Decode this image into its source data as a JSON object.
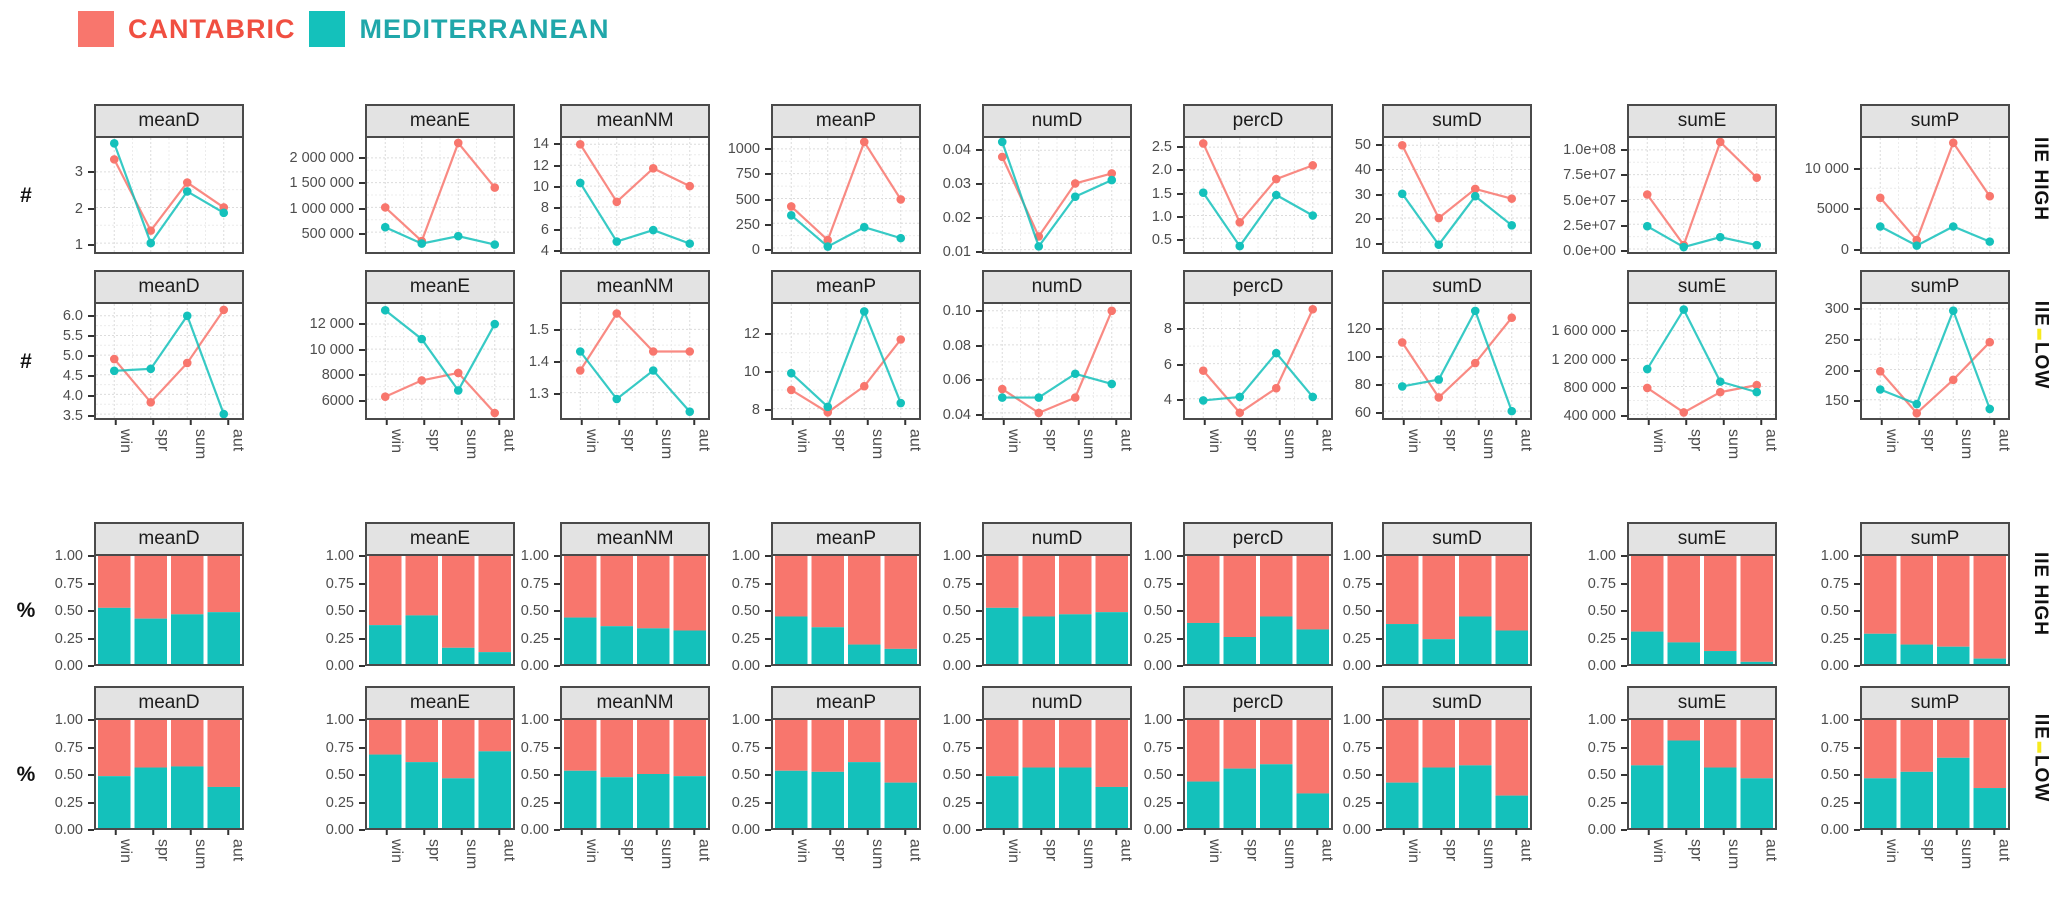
{
  "legend": {
    "items": [
      {
        "label": "CANTABRIC",
        "swatch_color": "#f8766d",
        "text_color": "#f04f41"
      },
      {
        "label": "MEDITERRANEAN",
        "swatch_color": "#14c1bb",
        "text_color": "#20a7aa"
      }
    ]
  },
  "colors": {
    "cantabric": "#f8766d",
    "mediterranean": "#14c1bb",
    "grid_major": "#dcdcdc",
    "grid_minor": "#ececec",
    "axis_text": "#4d4d4d",
    "strip_bg": "#e3e3e3",
    "panel_border": "#4a4a4a",
    "highlight_yellow": "#f7ea1f"
  },
  "chart_data": {
    "type": "facet_grid",
    "x_categories": [
      "win",
      "spr",
      "sum",
      "aut"
    ],
    "facet_columns": [
      "meanD",
      "meanE",
      "meanNM",
      "meanP",
      "numD",
      "percD",
      "sumD",
      "sumE",
      "sumP"
    ],
    "series_names": [
      "CANTABRIC",
      "MEDITERRANEAN"
    ],
    "rows": [
      {
        "id": "lines-iie-high",
        "kind": "line",
        "axis_unit": "#",
        "strip_label": "IIE HIGH",
        "strip_highlight": false,
        "show_x_axis": false,
        "panels": [
          {
            "facet": "meanD",
            "ylim": [
              0.75,
              3.95
            ],
            "tick_values": [
              1,
              2,
              3
            ],
            "tick_labels": [
              "1",
              "2",
              "3"
            ],
            "cantabric": [
              3.35,
              1.35,
              2.7,
              2.0
            ],
            "mediterranean": [
              3.8,
              1.0,
              2.45,
              1.85
            ]
          },
          {
            "facet": "meanE",
            "ylim": [
              100000,
              2400000
            ],
            "tick_values": [
              500000,
              1000000,
              1500000,
              2000000
            ],
            "tick_labels": [
              "500 000",
              "1 000 000",
              "1 500 000",
              "2 000 000"
            ],
            "cantabric": [
              1000000,
              320000,
              2300000,
              1400000
            ],
            "mediterranean": [
              600000,
              270000,
              420000,
              250000
            ]
          },
          {
            "facet": "meanNM",
            "ylim": [
              3.7,
              14.6
            ],
            "tick_values": [
              4,
              6,
              8,
              10,
              12,
              14
            ],
            "tick_labels": [
              "4",
              "6",
              "8",
              "10",
              "12",
              "14"
            ],
            "cantabric": [
              14.0,
              8.5,
              11.7,
              10.0
            ],
            "mediterranean": [
              10.3,
              4.7,
              5.8,
              4.5
            ]
          },
          {
            "facet": "meanP",
            "ylim": [
              -40,
              1110
            ],
            "tick_values": [
              0,
              250,
              500,
              750,
              1000
            ],
            "tick_labels": [
              "0",
              "250",
              "500",
              "750",
              "1000"
            ],
            "cantabric": [
              420,
              80,
              1070,
              490
            ],
            "mediterranean": [
              330,
              15,
              210,
              100
            ]
          },
          {
            "facet": "numD",
            "ylim": [
              0.0093,
              0.0437
            ],
            "tick_values": [
              0.01,
              0.02,
              0.03,
              0.04
            ],
            "tick_labels": [
              "0.01",
              "0.02",
              "0.03",
              "0.04"
            ],
            "cantabric": [
              0.038,
              0.014,
              0.03,
              0.033
            ],
            "mediterranean": [
              0.0425,
              0.011,
              0.026,
              0.031
            ]
          },
          {
            "facet": "percD",
            "ylim": [
              0.2,
              2.7
            ],
            "tick_values": [
              0.5,
              1.0,
              1.5,
              2.0,
              2.5
            ],
            "tick_labels": [
              "0.5",
              "1.0",
              "1.5",
              "2.0",
              "2.5"
            ],
            "cantabric": [
              2.58,
              0.85,
              1.8,
              2.1
            ],
            "mediterranean": [
              1.5,
              0.33,
              1.45,
              1.0
            ]
          },
          {
            "facet": "sumD",
            "ylim": [
              6,
              53
            ],
            "tick_values": [
              10,
              20,
              30,
              40,
              50
            ],
            "tick_labels": [
              "10",
              "20",
              "30",
              "40",
              "50"
            ],
            "cantabric": [
              50,
              20,
              32,
              28
            ],
            "mediterranean": [
              30,
              9,
              29,
              17
            ]
          },
          {
            "facet": "sumE",
            "ylim": [
              -3000000,
              112000000
            ],
            "tick_values": [
              0,
              25000000,
              50000000,
              75000000,
              100000000
            ],
            "tick_labels": [
              "0.0e+00",
              "2.5e+07",
              "5.0e+07",
              "7.5e+07",
              "1.0e+08"
            ],
            "cantabric": [
              55000000,
              4000000,
              108000000,
              72000000
            ],
            "mediterranean": [
              23000000,
              2000000,
              12000000,
              4000000
            ]
          },
          {
            "facet": "sumP",
            "ylim": [
              -500,
              13800
            ],
            "tick_values": [
              0,
              5000,
              10000
            ],
            "tick_labels": [
              "0",
              "5000",
              "10 000"
            ],
            "cantabric": [
              6300,
              1000,
              13200,
              6500
            ],
            "mediterranean": [
              2700,
              300,
              2700,
              800
            ]
          }
        ]
      },
      {
        "id": "lines-iie-low",
        "kind": "line",
        "axis_unit": "#",
        "strip_label": "IIE LOW",
        "strip_highlight": true,
        "show_x_axis": true,
        "panels": [
          {
            "facet": "meanD",
            "ylim": [
              3.4,
              6.3
            ],
            "tick_values": [
              3.5,
              4.0,
              4.5,
              5.0,
              5.5,
              6.0
            ],
            "tick_labels": [
              "3.5",
              "4.0",
              "4.5",
              "5.0",
              "5.5",
              "6.0"
            ],
            "cantabric": [
              4.9,
              3.8,
              4.8,
              6.15
            ],
            "mediterranean": [
              4.6,
              4.65,
              6.0,
              3.5
            ]
          },
          {
            "facet": "meanE",
            "ylim": [
              4500,
              13600
            ],
            "tick_values": [
              6000,
              8000,
              10000,
              12000
            ],
            "tick_labels": [
              "6000",
              "8000",
              "10 000",
              "12 000"
            ],
            "cantabric": [
              6200,
              7500,
              8100,
              4900
            ],
            "mediterranean": [
              13100,
              10800,
              6700,
              12000
            ]
          },
          {
            "facet": "meanNM",
            "ylim": [
              1.22,
              1.58
            ],
            "tick_values": [
              1.3,
              1.4,
              1.5
            ],
            "tick_labels": [
              "1.3",
              "1.4",
              "1.5"
            ],
            "cantabric": [
              1.37,
              1.55,
              1.43,
              1.43
            ],
            "mediterranean": [
              1.43,
              1.28,
              1.37,
              1.24
            ]
          },
          {
            "facet": "meanP",
            "ylim": [
              7.5,
              13.6
            ],
            "tick_values": [
              8,
              10,
              12
            ],
            "tick_labels": [
              "8",
              "10",
              "12"
            ],
            "cantabric": [
              9.0,
              7.8,
              9.2,
              11.7
            ],
            "mediterranean": [
              9.9,
              8.1,
              13.2,
              8.3
            ]
          },
          {
            "facet": "numD",
            "ylim": [
              0.037,
              0.104
            ],
            "tick_values": [
              0.04,
              0.06,
              0.08,
              0.1
            ],
            "tick_labels": [
              "0.04",
              "0.06",
              "0.08",
              "0.10"
            ],
            "cantabric": [
              0.054,
              0.04,
              0.049,
              0.1
            ],
            "mediterranean": [
              0.049,
              0.049,
              0.063,
              0.057
            ]
          },
          {
            "facet": "percD",
            "ylim": [
              2.9,
              9.4
            ],
            "tick_values": [
              4,
              6,
              8
            ],
            "tick_labels": [
              "4",
              "6",
              "8"
            ],
            "cantabric": [
              5.6,
              3.2,
              4.6,
              9.1
            ],
            "mediterranean": [
              3.9,
              4.1,
              6.6,
              4.1
            ]
          },
          {
            "facet": "sumD",
            "ylim": [
              55,
              138
            ],
            "tick_values": [
              60,
              80,
              100,
              120
            ],
            "tick_labels": [
              "60",
              "80",
              "100",
              "120"
            ],
            "cantabric": [
              110,
              70,
              95,
              128
            ],
            "mediterranean": [
              78,
              83,
              133,
              60
            ]
          },
          {
            "facet": "sumE",
            "ylim": [
              350000,
              1980000
            ],
            "tick_values": [
              400000,
              800000,
              1200000,
              1600000
            ],
            "tick_labels": [
              "400 000",
              "800 000",
              "1 200 000",
              "1 600 000"
            ],
            "cantabric": [
              780000,
              430000,
              720000,
              820000
            ],
            "mediterranean": [
              1050000,
              1900000,
              870000,
              720000
            ]
          },
          {
            "facet": "sumP",
            "ylim": [
              120,
              308
            ],
            "tick_values": [
              150,
              200,
              250,
              300
            ],
            "tick_labels": [
              "150",
              "200",
              "250",
              "300"
            ],
            "cantabric": [
              197,
              128,
              183,
              245
            ],
            "mediterranean": [
              167,
              143,
              297,
              135
            ]
          }
        ]
      },
      {
        "id": "bars-iie-high",
        "kind": "bar",
        "axis_unit": "%",
        "strip_label": "IIE HIGH",
        "strip_highlight": false,
        "show_x_axis": false,
        "tick_values": [
          0.0,
          0.25,
          0.5,
          0.75,
          1.0
        ],
        "tick_labels": [
          "0.00",
          "0.25",
          "0.50",
          "0.75",
          "1.00"
        ],
        "panels": [
          {
            "facet": "meanD",
            "mediterranean_fraction": [
              0.52,
              0.42,
              0.46,
              0.48
            ]
          },
          {
            "facet": "meanE",
            "mediterranean_fraction": [
              0.36,
              0.45,
              0.15,
              0.11
            ]
          },
          {
            "facet": "meanNM",
            "mediterranean_fraction": [
              0.43,
              0.35,
              0.33,
              0.31
            ]
          },
          {
            "facet": "meanP",
            "mediterranean_fraction": [
              0.44,
              0.34,
              0.18,
              0.14
            ]
          },
          {
            "facet": "numD",
            "mediterranean_fraction": [
              0.52,
              0.44,
              0.46,
              0.48
            ]
          },
          {
            "facet": "percD",
            "mediterranean_fraction": [
              0.38,
              0.25,
              0.44,
              0.32
            ]
          },
          {
            "facet": "sumD",
            "mediterranean_fraction": [
              0.37,
              0.23,
              0.44,
              0.31
            ]
          },
          {
            "facet": "sumE",
            "mediterranean_fraction": [
              0.3,
              0.2,
              0.12,
              0.02
            ]
          },
          {
            "facet": "sumP",
            "mediterranean_fraction": [
              0.28,
              0.18,
              0.16,
              0.05
            ]
          }
        ]
      },
      {
        "id": "bars-iie-low",
        "kind": "bar",
        "axis_unit": "%",
        "strip_label": "IIE LOW",
        "strip_highlight": true,
        "show_x_axis": true,
        "tick_values": [
          0.0,
          0.25,
          0.5,
          0.75,
          1.0
        ],
        "tick_labels": [
          "0.00",
          "0.25",
          "0.50",
          "0.75",
          "1.00"
        ],
        "panels": [
          {
            "facet": "meanD",
            "mediterranean_fraction": [
              0.48,
              0.56,
              0.57,
              0.38
            ]
          },
          {
            "facet": "meanE",
            "mediterranean_fraction": [
              0.68,
              0.61,
              0.46,
              0.71
            ]
          },
          {
            "facet": "meanNM",
            "mediterranean_fraction": [
              0.53,
              0.47,
              0.5,
              0.48
            ]
          },
          {
            "facet": "meanP",
            "mediterranean_fraction": [
              0.53,
              0.52,
              0.61,
              0.42
            ]
          },
          {
            "facet": "numD",
            "mediterranean_fraction": [
              0.48,
              0.56,
              0.56,
              0.38
            ]
          },
          {
            "facet": "percD",
            "mediterranean_fraction": [
              0.43,
              0.55,
              0.59,
              0.32
            ]
          },
          {
            "facet": "sumD",
            "mediterranean_fraction": [
              0.42,
              0.56,
              0.58,
              0.3
            ]
          },
          {
            "facet": "sumE",
            "mediterranean_fraction": [
              0.58,
              0.81,
              0.56,
              0.46
            ]
          },
          {
            "facet": "sumP",
            "mediterranean_fraction": [
              0.46,
              0.52,
              0.65,
              0.37
            ]
          }
        ]
      }
    ]
  }
}
